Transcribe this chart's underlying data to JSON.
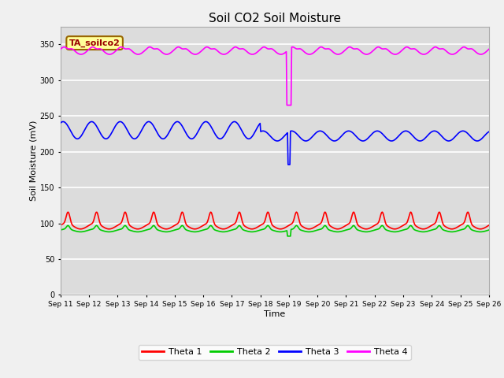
{
  "title": "Soil CO2 Soil Moisture",
  "xlabel": "Time",
  "ylabel": "Soil Moisture (mV)",
  "annotation_text": "TA_soilco2",
  "ylim": [
    0,
    375
  ],
  "yticks": [
    0,
    50,
    100,
    150,
    200,
    250,
    300,
    350
  ],
  "xtick_labels": [
    "Sep 11",
    "Sep 12",
    "Sep 13",
    "Sep 14",
    "Sep 15",
    "Sep 16",
    "Sep 17",
    "Sep 18",
    "Sep 19",
    "Sep 20",
    "Sep 21",
    "Sep 22",
    "Sep 23",
    "Sep 24",
    "Sep 25",
    "Sep 26"
  ],
  "colors": {
    "theta1": "#FF0000",
    "theta2": "#00CC00",
    "theta3": "#0000FF",
    "theta4": "#FF00FF"
  },
  "legend_labels": [
    "Theta 1",
    "Theta 2",
    "Theta 3",
    "Theta 4"
  ],
  "bg_color": "#DCDCDC",
  "grid_color": "#FFFFFF",
  "fig_color": "#F0F0F0",
  "annotation_bg": "#FFFF99",
  "annotation_border": "#996600",
  "annotation_text_color": "#990000",
  "n_days": 15,
  "theta1_base": 96,
  "theta1_amp": 4,
  "theta2_base": 90,
  "theta3_base_early": 230,
  "theta3_amp_early": 12,
  "theta3_base_late": 222,
  "theta3_amp_late": 7,
  "theta4_base": 342,
  "theta4_amp": 6,
  "dip_day": 8.0,
  "theta2_dip_val": 82,
  "theta3_dip_val": 182,
  "theta4_dip_val": 265
}
